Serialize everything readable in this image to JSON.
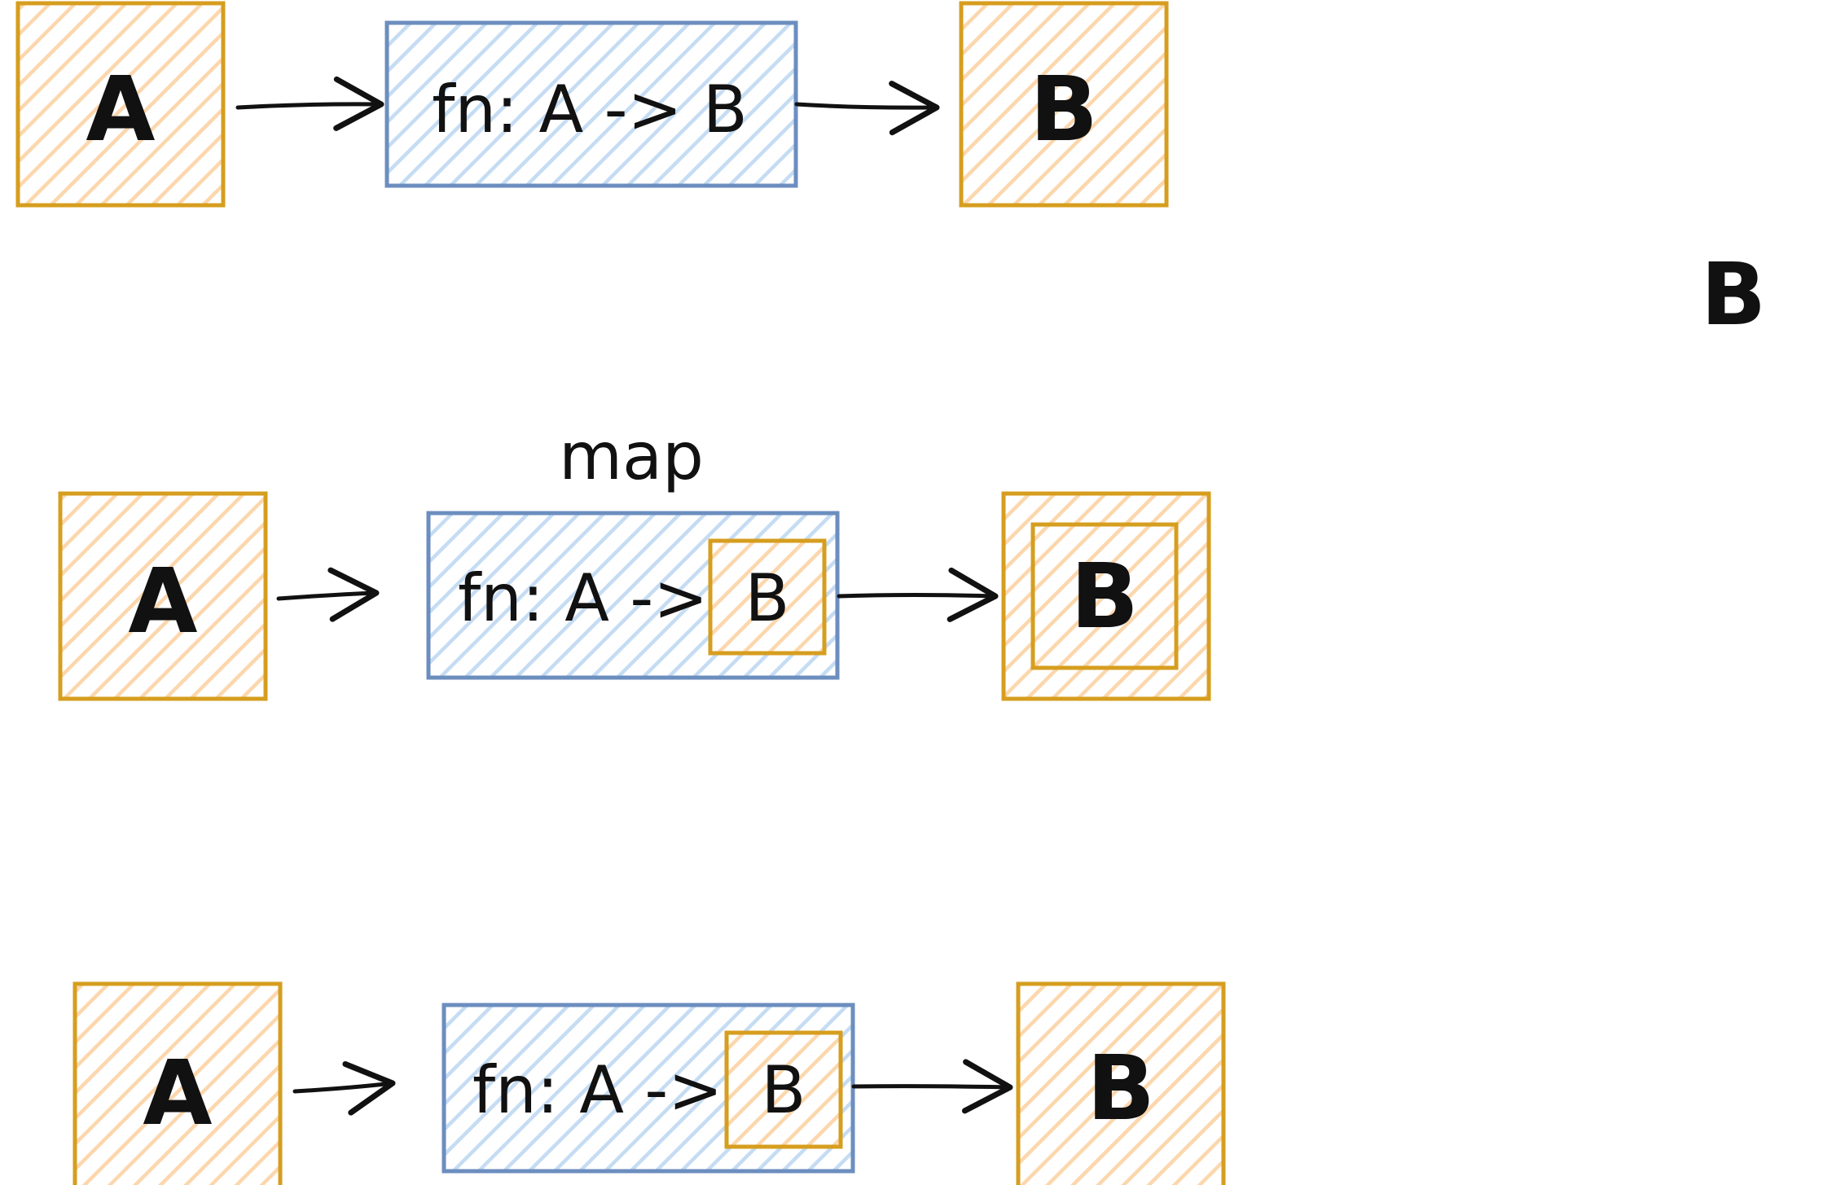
{
  "colors": {
    "orange_stroke": "#d69e1f",
    "orange_fill": "#fde0bd",
    "blue_stroke": "#6c8ebf",
    "blue_fill": "#cfe2f5",
    "ink": "#111111"
  },
  "row1": {
    "input_label": "A",
    "fn_label": "fn: A -> B",
    "output_label": "B"
  },
  "floating_label": "B",
  "row2": {
    "title": "map",
    "input_label": "A",
    "fn_label": "fn: A ->",
    "fn_inner_label": "B",
    "output_label": "B"
  },
  "row3": {
    "input_label": "A",
    "fn_label": "fn: A ->",
    "fn_inner_label": "B",
    "output_label": "B"
  }
}
